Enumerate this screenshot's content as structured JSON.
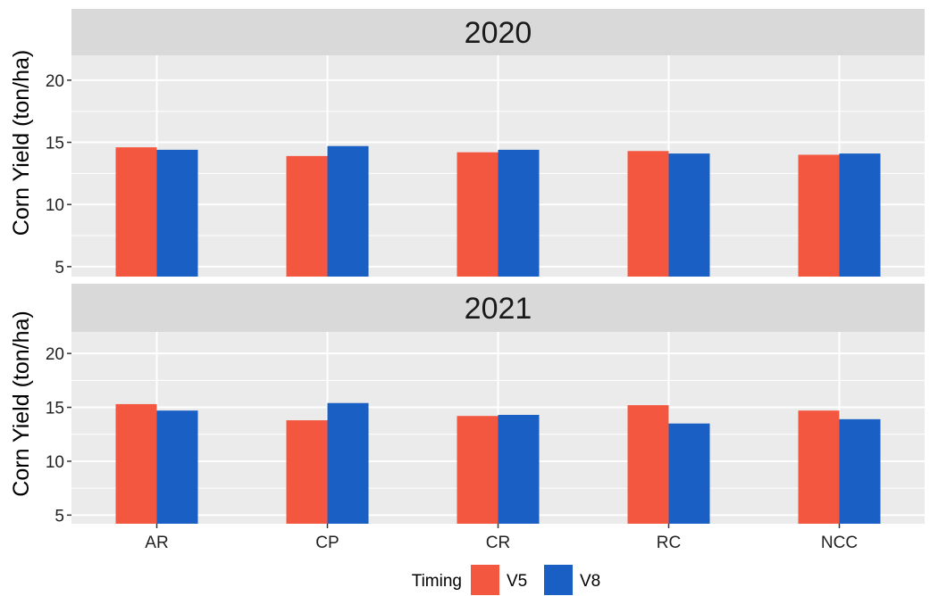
{
  "chart_data": {
    "type": "bar",
    "facets": [
      {
        "title": "2020",
        "ylabel": "Corn Yield (ton/ha)",
        "ylim": [
          4.2,
          22
        ],
        "yticks": [
          "5",
          "10",
          "15",
          "20"
        ],
        "ytick_values": [
          5,
          10,
          15,
          20
        ],
        "categories": [
          "AR",
          "CP",
          "CR",
          "RC",
          "NCC"
        ],
        "series": [
          {
            "name": "V5",
            "color": "#f4573f",
            "values": [
              14.6,
              13.9,
              14.2,
              14.3,
              14.0
            ]
          },
          {
            "name": "V8",
            "color": "#1a5fc4",
            "values": [
              14.4,
              14.7,
              14.4,
              14.1,
              14.1
            ]
          }
        ]
      },
      {
        "title": "2021",
        "ylabel": "Corn Yield (ton/ha)",
        "ylim": [
          4.2,
          22
        ],
        "yticks": [
          "5",
          "10",
          "15",
          "20"
        ],
        "ytick_values": [
          5,
          10,
          15,
          20
        ],
        "categories": [
          "AR",
          "CP",
          "CR",
          "RC",
          "NCC"
        ],
        "series": [
          {
            "name": "V5",
            "color": "#f4573f",
            "values": [
              15.3,
              13.8,
              14.2,
              15.2,
              14.7
            ]
          },
          {
            "name": "V8",
            "color": "#1a5fc4",
            "values": [
              14.7,
              15.4,
              14.3,
              13.5,
              13.9
            ]
          }
        ]
      }
    ],
    "xticks": [
      "AR",
      "CP",
      "CR",
      "RC",
      "NCC"
    ],
    "legend": {
      "title": "Timing",
      "position": "bottom",
      "items": [
        {
          "label": "V5",
          "color": "#f4573f"
        },
        {
          "label": "V8",
          "color": "#1a5fc4"
        }
      ]
    },
    "colors": {
      "panel_bg": "#ebebeb",
      "strip_bg": "#d9d9d9",
      "grid": "#ffffff"
    },
    "grid": true
  }
}
